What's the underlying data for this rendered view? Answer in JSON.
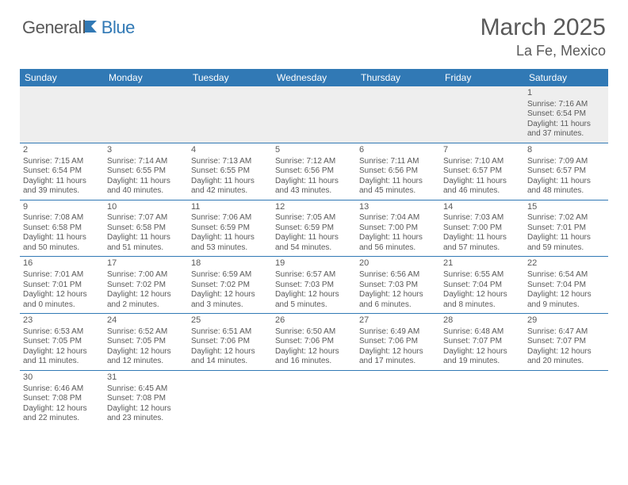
{
  "logo": {
    "part1": "General",
    "part2": "Blue"
  },
  "title": "March 2025",
  "location": "La Fe, Mexico",
  "colors": {
    "header_bg": "#3179b5",
    "header_text": "#ffffff",
    "body_text": "#595959",
    "empty_bg": "#eeeeee",
    "row_border": "#3179b5"
  },
  "days_of_week": [
    "Sunday",
    "Monday",
    "Tuesday",
    "Wednesday",
    "Thursday",
    "Friday",
    "Saturday"
  ],
  "weeks": [
    [
      null,
      null,
      null,
      null,
      null,
      null,
      {
        "n": "1",
        "sunrise": "7:16 AM",
        "sunset": "6:54 PM",
        "dl": "11 hours and 37 minutes."
      }
    ],
    [
      {
        "n": "2",
        "sunrise": "7:15 AM",
        "sunset": "6:54 PM",
        "dl": "11 hours and 39 minutes."
      },
      {
        "n": "3",
        "sunrise": "7:14 AM",
        "sunset": "6:55 PM",
        "dl": "11 hours and 40 minutes."
      },
      {
        "n": "4",
        "sunrise": "7:13 AM",
        "sunset": "6:55 PM",
        "dl": "11 hours and 42 minutes."
      },
      {
        "n": "5",
        "sunrise": "7:12 AM",
        "sunset": "6:56 PM",
        "dl": "11 hours and 43 minutes."
      },
      {
        "n": "6",
        "sunrise": "7:11 AM",
        "sunset": "6:56 PM",
        "dl": "11 hours and 45 minutes."
      },
      {
        "n": "7",
        "sunrise": "7:10 AM",
        "sunset": "6:57 PM",
        "dl": "11 hours and 46 minutes."
      },
      {
        "n": "8",
        "sunrise": "7:09 AM",
        "sunset": "6:57 PM",
        "dl": "11 hours and 48 minutes."
      }
    ],
    [
      {
        "n": "9",
        "sunrise": "7:08 AM",
        "sunset": "6:58 PM",
        "dl": "11 hours and 50 minutes."
      },
      {
        "n": "10",
        "sunrise": "7:07 AM",
        "sunset": "6:58 PM",
        "dl": "11 hours and 51 minutes."
      },
      {
        "n": "11",
        "sunrise": "7:06 AM",
        "sunset": "6:59 PM",
        "dl": "11 hours and 53 minutes."
      },
      {
        "n": "12",
        "sunrise": "7:05 AM",
        "sunset": "6:59 PM",
        "dl": "11 hours and 54 minutes."
      },
      {
        "n": "13",
        "sunrise": "7:04 AM",
        "sunset": "7:00 PM",
        "dl": "11 hours and 56 minutes."
      },
      {
        "n": "14",
        "sunrise": "7:03 AM",
        "sunset": "7:00 PM",
        "dl": "11 hours and 57 minutes."
      },
      {
        "n": "15",
        "sunrise": "7:02 AM",
        "sunset": "7:01 PM",
        "dl": "11 hours and 59 minutes."
      }
    ],
    [
      {
        "n": "16",
        "sunrise": "7:01 AM",
        "sunset": "7:01 PM",
        "dl": "12 hours and 0 minutes."
      },
      {
        "n": "17",
        "sunrise": "7:00 AM",
        "sunset": "7:02 PM",
        "dl": "12 hours and 2 minutes."
      },
      {
        "n": "18",
        "sunrise": "6:59 AM",
        "sunset": "7:02 PM",
        "dl": "12 hours and 3 minutes."
      },
      {
        "n": "19",
        "sunrise": "6:57 AM",
        "sunset": "7:03 PM",
        "dl": "12 hours and 5 minutes."
      },
      {
        "n": "20",
        "sunrise": "6:56 AM",
        "sunset": "7:03 PM",
        "dl": "12 hours and 6 minutes."
      },
      {
        "n": "21",
        "sunrise": "6:55 AM",
        "sunset": "7:04 PM",
        "dl": "12 hours and 8 minutes."
      },
      {
        "n": "22",
        "sunrise": "6:54 AM",
        "sunset": "7:04 PM",
        "dl": "12 hours and 9 minutes."
      }
    ],
    [
      {
        "n": "23",
        "sunrise": "6:53 AM",
        "sunset": "7:05 PM",
        "dl": "12 hours and 11 minutes."
      },
      {
        "n": "24",
        "sunrise": "6:52 AM",
        "sunset": "7:05 PM",
        "dl": "12 hours and 12 minutes."
      },
      {
        "n": "25",
        "sunrise": "6:51 AM",
        "sunset": "7:06 PM",
        "dl": "12 hours and 14 minutes."
      },
      {
        "n": "26",
        "sunrise": "6:50 AM",
        "sunset": "7:06 PM",
        "dl": "12 hours and 16 minutes."
      },
      {
        "n": "27",
        "sunrise": "6:49 AM",
        "sunset": "7:06 PM",
        "dl": "12 hours and 17 minutes."
      },
      {
        "n": "28",
        "sunrise": "6:48 AM",
        "sunset": "7:07 PM",
        "dl": "12 hours and 19 minutes."
      },
      {
        "n": "29",
        "sunrise": "6:47 AM",
        "sunset": "7:07 PM",
        "dl": "12 hours and 20 minutes."
      }
    ],
    [
      {
        "n": "30",
        "sunrise": "6:46 AM",
        "sunset": "7:08 PM",
        "dl": "12 hours and 22 minutes."
      },
      {
        "n": "31",
        "sunrise": "6:45 AM",
        "sunset": "7:08 PM",
        "dl": "12 hours and 23 minutes."
      },
      null,
      null,
      null,
      null,
      null
    ]
  ]
}
